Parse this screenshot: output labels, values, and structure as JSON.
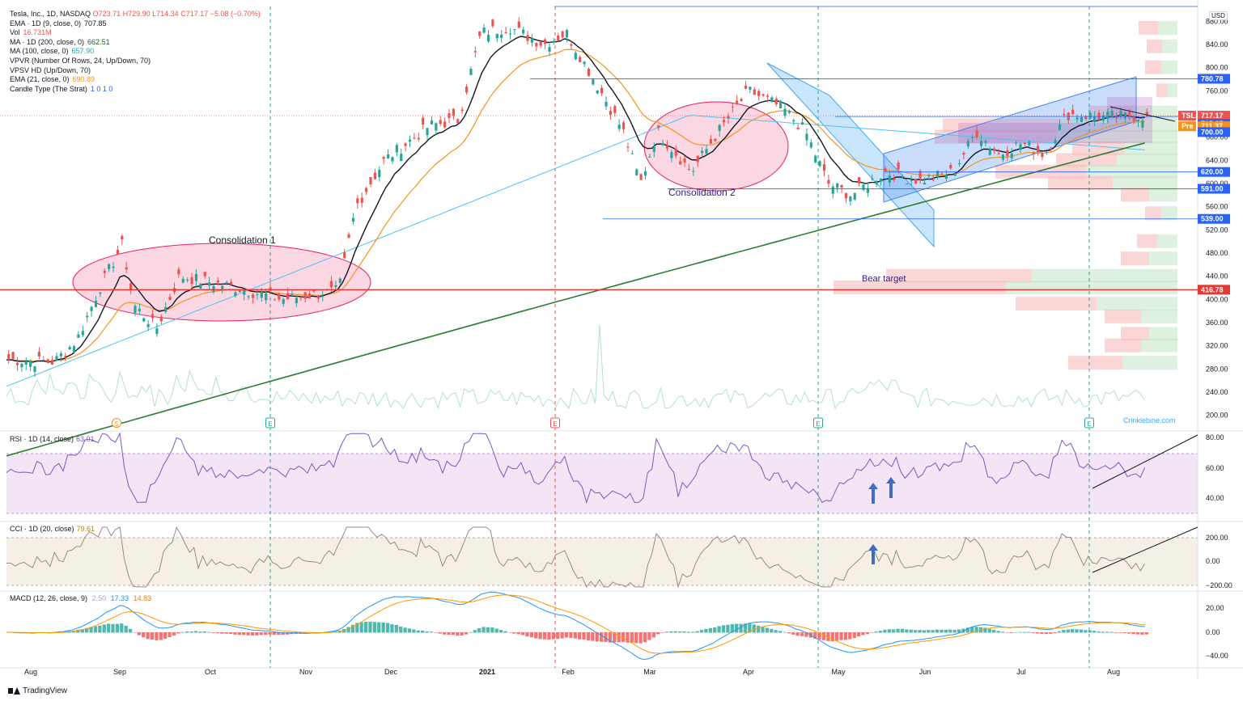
{
  "legend": {
    "symbol": "Tesla, Inc., 1D, NASDAQ",
    "o": "O723.71",
    "h": "H729.90",
    "l": "L714.34",
    "c": "C717.17",
    "chg": "−5.08 (−0.70%)",
    "rows": [
      {
        "label": "EMA · 1D (9, close, 0)",
        "value": "707.85",
        "color": "#131722"
      },
      {
        "label": "Vol",
        "value": "16.731M",
        "color": "#ef5350"
      },
      {
        "label": "MA · 1D (200, close, 0)",
        "value": "662.51",
        "color": "#1b5e20"
      },
      {
        "label": "MA (100, close, 0)",
        "value": "657.90",
        "color": "#26a3b8"
      },
      {
        "label": "VPVR (Number Of Rows, 24, Up/Down, 70)",
        "value": "",
        "color": "#131722"
      },
      {
        "label": "VPSV HD (Up/Down, 70)",
        "value": "",
        "color": "#131722"
      },
      {
        "label": "EMA (21, close, 0)",
        "value": "690.89",
        "color": "#f7931a"
      },
      {
        "label": "Candle Type (The Strat)",
        "value": "1 0 1 0",
        "color": "#2962ff"
      }
    ]
  },
  "usd_label": "USD",
  "annotations": {
    "consolidation1": "Consolidation 1",
    "consolidation2": "Consolidation 2",
    "bear_target": "Bear target",
    "watermark": "Crinklebine.com"
  },
  "price_badges": [
    {
      "text": "780.78",
      "price": 780.78,
      "color": "#2962ff"
    },
    {
      "text": "TSLA",
      "price": 717.17,
      "color": "#ef5350",
      "offset": -24
    },
    {
      "text": "717.17",
      "price": 717.17,
      "color": "#ef5350"
    },
    {
      "text": "715.65",
      "price": 715.65,
      "color": "#2962ff",
      "dy": 9
    },
    {
      "text": "Pre",
      "price": 711.37,
      "color": "#f7931a",
      "offset": -24,
      "dy": 9
    },
    {
      "text": "711.37",
      "price": 711.37,
      "color": "#f7931a",
      "dy": 9
    },
    {
      "text": "700.00",
      "price": 700,
      "color": "#2962ff",
      "dy": 8
    },
    {
      "text": "620.00",
      "price": 620,
      "color": "#2962ff"
    },
    {
      "text": "591.00",
      "price": 591,
      "color": "#2962ff"
    },
    {
      "text": "539.00",
      "price": 539,
      "color": "#2962ff"
    },
    {
      "text": "416.78",
      "price": 416.78,
      "color": "#e53935"
    }
  ],
  "rsi": {
    "title": "RSI · 1D (14, close)",
    "value": "63.01",
    "value_color": "#7e57c2",
    "ticks": [
      "80.00",
      "60.00",
      "40.00"
    ]
  },
  "cci": {
    "title": "CCI · 1D (20, close)",
    "value": "79.61",
    "value_color": "#b8860b",
    "ticks": [
      "200.00",
      "0.00",
      "−200.00"
    ]
  },
  "macd": {
    "title": "MACD (12, 26, close, 9)",
    "v1": "2.50",
    "v2": "17.33",
    "v3": "14.83",
    "ticks": [
      "20.00",
      "0.00",
      "−40.00"
    ]
  },
  "footer": {
    "brand": "TradingView"
  },
  "chart_data": {
    "type": "candlestick",
    "symbol": "TSLA",
    "interval": "1D",
    "x_labels": [
      "Aug",
      "Sep",
      "Oct",
      "Nov",
      "Dec",
      "2021",
      "Feb",
      "Mar",
      "Apr",
      "May",
      "Jun",
      "Jul",
      "Aug"
    ],
    "price_axis_labels": [
      "880.00",
      "840.00",
      "800.00",
      "760.00",
      "720.00",
      "680.00",
      "640.00",
      "600.00",
      "560.00",
      "520.00",
      "480.00",
      "440.00",
      "400.00",
      "360.00",
      "320.00",
      "280.00",
      "240.00",
      "200.00"
    ],
    "price_anchors": [
      {
        "x": 0.0,
        "p": 296
      },
      {
        "x": 0.04,
        "p": 292
      },
      {
        "x": 0.06,
        "p": 330
      },
      {
        "x": 0.08,
        "p": 420
      },
      {
        "x": 0.1,
        "p": 495
      },
      {
        "x": 0.11,
        "p": 390
      },
      {
        "x": 0.13,
        "p": 350
      },
      {
        "x": 0.15,
        "p": 440
      },
      {
        "x": 0.19,
        "p": 425
      },
      {
        "x": 0.24,
        "p": 400
      },
      {
        "x": 0.29,
        "p": 415
      },
      {
        "x": 0.305,
        "p": 560
      },
      {
        "x": 0.33,
        "p": 640
      },
      {
        "x": 0.37,
        "p": 700
      },
      {
        "x": 0.395,
        "p": 710
      },
      {
        "x": 0.415,
        "p": 860
      },
      {
        "x": 0.44,
        "p": 870
      },
      {
        "x": 0.47,
        "p": 840
      },
      {
        "x": 0.49,
        "p": 860
      },
      {
        "x": 0.52,
        "p": 760
      },
      {
        "x": 0.54,
        "p": 690
      },
      {
        "x": 0.555,
        "p": 600
      },
      {
        "x": 0.57,
        "p": 690
      },
      {
        "x": 0.6,
        "p": 620
      },
      {
        "x": 0.62,
        "p": 680
      },
      {
        "x": 0.65,
        "p": 760
      },
      {
        "x": 0.68,
        "p": 730
      },
      {
        "x": 0.7,
        "p": 690
      },
      {
        "x": 0.72,
        "p": 600
      },
      {
        "x": 0.74,
        "p": 580
      },
      {
        "x": 0.77,
        "p": 620
      },
      {
        "x": 0.8,
        "p": 605
      },
      {
        "x": 0.83,
        "p": 620
      },
      {
        "x": 0.85,
        "p": 690
      },
      {
        "x": 0.87,
        "p": 650
      },
      {
        "x": 0.89,
        "p": 670
      },
      {
        "x": 0.91,
        "p": 650
      },
      {
        "x": 0.93,
        "p": 720
      },
      {
        "x": 0.96,
        "p": 715
      },
      {
        "x": 1.0,
        "p": 717
      }
    ],
    "last": {
      "open": 723.71,
      "high": 729.9,
      "low": 714.34,
      "close": 717.17,
      "change": -5.08,
      "change_pct": -0.7
    },
    "levels": [
      780.78,
      715.65,
      700.0,
      620.0,
      591.0,
      539.0,
      416.78
    ],
    "indicators": {
      "ema9": 707.85,
      "ema21": 690.89,
      "ma100": 657.9,
      "ma200": 662.51,
      "volume": "16.731M",
      "rsi": 63.01,
      "cci": 79.61,
      "macd": [
        2.5,
        17.33,
        14.83
      ]
    }
  }
}
